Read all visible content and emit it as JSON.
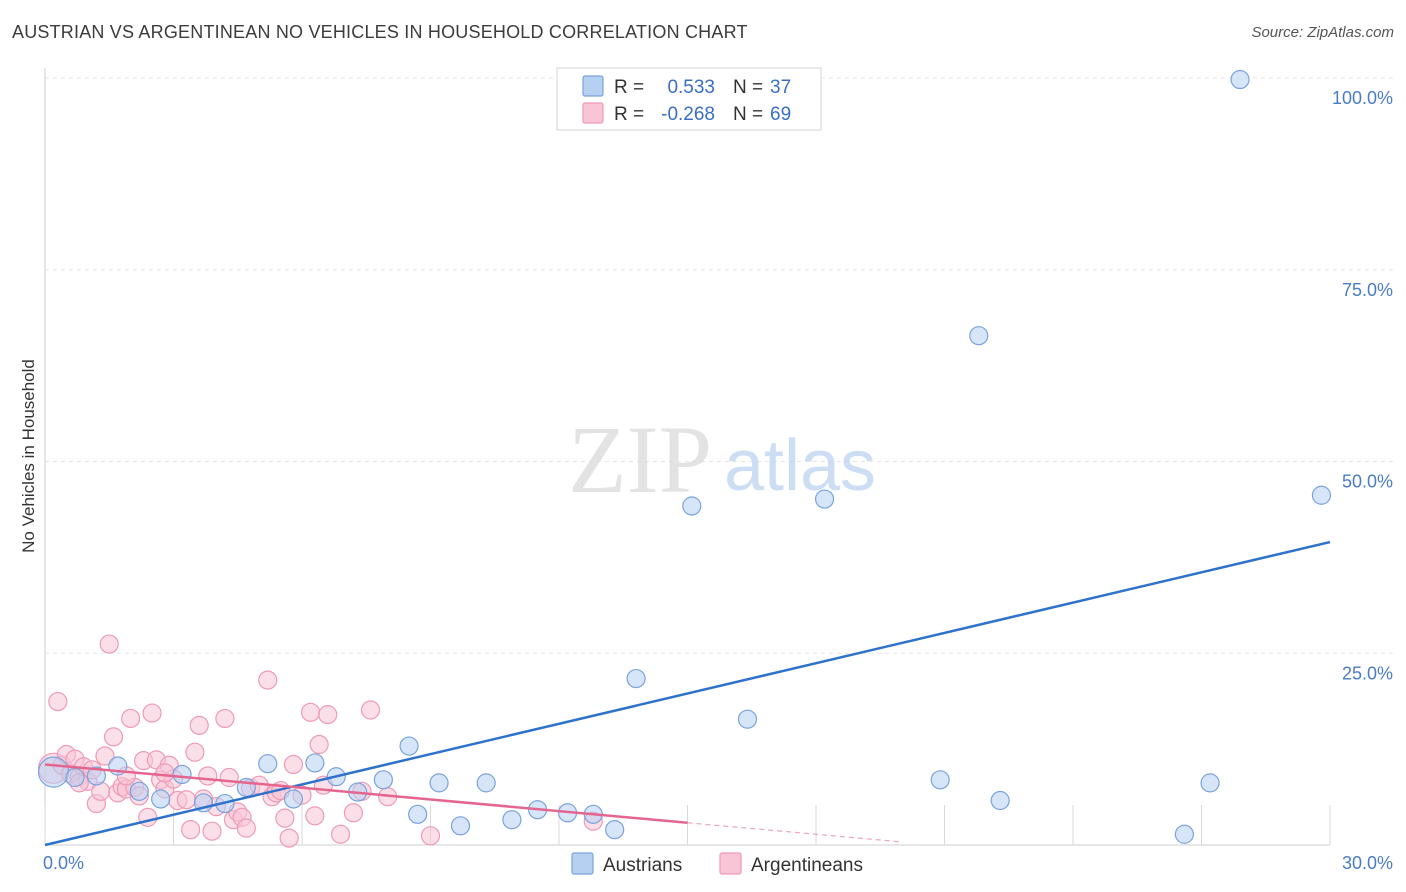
{
  "header": {
    "title": "AUSTRIAN VS ARGENTINEAN NO VEHICLES IN HOUSEHOLD CORRELATION CHART",
    "source": "Source: ZipAtlas.com"
  },
  "watermark": {
    "zip": "ZIP",
    "atlas": "atlas"
  },
  "colors": {
    "austrians_fill": "#b6d0f2",
    "austrians_stroke": "#7aa3dd",
    "austrians_line": "#2f72cc",
    "argentineans_fill": "#f8c5d6",
    "argentineans_stroke": "#ee9ab6",
    "argentineans_line": "#e4668f",
    "grid": "#e6e6e6",
    "axis_text": "#4a7cc6"
  },
  "legend": {
    "rows": [
      {
        "r_label": "R =",
        "r_value": "0.533",
        "n_label": "N =",
        "n_value": "37"
      },
      {
        "r_label": "R =",
        "r_value": "-0.268",
        "n_label": "N =",
        "n_value": "69"
      }
    ]
  },
  "chart_data": {
    "type": "scatter",
    "title": "AUSTRIAN VS ARGENTINEAN NO VEHICLES IN HOUSEHOLD CORRELATION CHART",
    "xlabel": "",
    "ylabel": "No Vehicles in Household",
    "xlim": [
      0,
      30
    ],
    "ylim": [
      0,
      100
    ],
    "x_tick_labels": [
      "0.0%",
      "30.0%"
    ],
    "y_ticks": [
      25,
      50,
      75,
      100
    ],
    "y_tick_labels": [
      "25.0%",
      "50.0%",
      "75.0%",
      "100.0%"
    ],
    "grid": true,
    "series": [
      {
        "name": "Austrians",
        "R": 0.533,
        "N": 37,
        "trend": {
          "x": [
            0,
            30
          ],
          "y": [
            0.0,
            39.5
          ]
        },
        "points": [
          {
            "x": 0.2,
            "y": 9.5,
            "big": true
          },
          {
            "x": 0.7,
            "y": 8.8
          },
          {
            "x": 1.2,
            "y": 9.0
          },
          {
            "x": 1.7,
            "y": 10.3
          },
          {
            "x": 2.2,
            "y": 7.0
          },
          {
            "x": 2.7,
            "y": 6.0
          },
          {
            "x": 3.2,
            "y": 9.2
          },
          {
            "x": 3.7,
            "y": 5.5
          },
          {
            "x": 4.2,
            "y": 5.4
          },
          {
            "x": 4.7,
            "y": 7.5
          },
          {
            "x": 5.2,
            "y": 10.6
          },
          {
            "x": 5.8,
            "y": 6.0
          },
          {
            "x": 6.3,
            "y": 10.7
          },
          {
            "x": 6.8,
            "y": 8.9
          },
          {
            "x": 7.3,
            "y": 6.9
          },
          {
            "x": 7.9,
            "y": 8.5
          },
          {
            "x": 8.5,
            "y": 12.9
          },
          {
            "x": 8.7,
            "y": 4.0
          },
          {
            "x": 9.2,
            "y": 8.1
          },
          {
            "x": 9.7,
            "y": 2.5
          },
          {
            "x": 10.3,
            "y": 8.1
          },
          {
            "x": 10.9,
            "y": 3.3
          },
          {
            "x": 11.5,
            "y": 4.6
          },
          {
            "x": 12.2,
            "y": 4.2
          },
          {
            "x": 12.8,
            "y": 4.0
          },
          {
            "x": 13.3,
            "y": 2.0
          },
          {
            "x": 13.8,
            "y": 21.7
          },
          {
            "x": 15.1,
            "y": 44.2
          },
          {
            "x": 16.4,
            "y": 16.4
          },
          {
            "x": 18.2,
            "y": 45.1
          },
          {
            "x": 20.9,
            "y": 8.5
          },
          {
            "x": 21.8,
            "y": 66.4
          },
          {
            "x": 22.3,
            "y": 5.8
          },
          {
            "x": 26.6,
            "y": 1.4
          },
          {
            "x": 27.2,
            "y": 8.1
          },
          {
            "x": 27.9,
            "y": 99.8
          },
          {
            "x": 29.8,
            "y": 45.6
          }
        ]
      },
      {
        "name": "Argentineans",
        "R": -0.268,
        "N": 69,
        "trend": {
          "x": [
            0,
            15
          ],
          "y": [
            10.5,
            2.9
          ]
        },
        "trend_dashed": {
          "x": [
            15,
            20
          ],
          "y": [
            2.9,
            0.4
          ]
        },
        "points": [
          {
            "x": 0.2,
            "y": 10.0,
            "big": true
          },
          {
            "x": 0.3,
            "y": 18.7
          },
          {
            "x": 0.4,
            "y": 10.4
          },
          {
            "x": 0.5,
            "y": 11.8
          },
          {
            "x": 0.6,
            "y": 9.3
          },
          {
            "x": 0.7,
            "y": 11.2
          },
          {
            "x": 0.8,
            "y": 8.9
          },
          {
            "x": 0.9,
            "y": 10.2
          },
          {
            "x": 1.0,
            "y": 8.3
          },
          {
            "x": 1.1,
            "y": 9.8
          },
          {
            "x": 1.2,
            "y": 5.4
          },
          {
            "x": 1.3,
            "y": 7.0
          },
          {
            "x": 1.4,
            "y": 11.6
          },
          {
            "x": 1.5,
            "y": 26.2
          },
          {
            "x": 1.6,
            "y": 14.1
          },
          {
            "x": 1.7,
            "y": 6.8
          },
          {
            "x": 1.8,
            "y": 7.6
          },
          {
            "x": 1.9,
            "y": 7.3
          },
          {
            "x": 2.0,
            "y": 16.5
          },
          {
            "x": 2.1,
            "y": 7.5
          },
          {
            "x": 2.2,
            "y": 6.4
          },
          {
            "x": 2.3,
            "y": 11.0
          },
          {
            "x": 2.4,
            "y": 3.6
          },
          {
            "x": 2.5,
            "y": 17.2
          },
          {
            "x": 2.6,
            "y": 11.1
          },
          {
            "x": 2.7,
            "y": 8.5
          },
          {
            "x": 2.8,
            "y": 7.3
          },
          {
            "x": 2.9,
            "y": 10.4
          },
          {
            "x": 3.0,
            "y": 8.6
          },
          {
            "x": 3.1,
            "y": 5.8
          },
          {
            "x": 3.3,
            "y": 5.9
          },
          {
            "x": 3.4,
            "y": 2.0
          },
          {
            "x": 3.5,
            "y": 12.1
          },
          {
            "x": 3.6,
            "y": 15.6
          },
          {
            "x": 3.8,
            "y": 9.0
          },
          {
            "x": 3.9,
            "y": 1.8
          },
          {
            "x": 4.0,
            "y": 5.0
          },
          {
            "x": 4.2,
            "y": 16.5
          },
          {
            "x": 4.3,
            "y": 8.8
          },
          {
            "x": 4.4,
            "y": 3.3
          },
          {
            "x": 4.5,
            "y": 4.3
          },
          {
            "x": 4.6,
            "y": 3.6
          },
          {
            "x": 4.7,
            "y": 2.2
          },
          {
            "x": 4.8,
            "y": 7.4
          },
          {
            "x": 5.0,
            "y": 7.8
          },
          {
            "x": 5.2,
            "y": 21.5
          },
          {
            "x": 5.3,
            "y": 6.3
          },
          {
            "x": 5.4,
            "y": 6.8
          },
          {
            "x": 5.6,
            "y": 3.5
          },
          {
            "x": 5.7,
            "y": 0.9
          },
          {
            "x": 5.8,
            "y": 10.5
          },
          {
            "x": 6.0,
            "y": 6.5
          },
          {
            "x": 6.2,
            "y": 17.3
          },
          {
            "x": 6.3,
            "y": 3.8
          },
          {
            "x": 6.4,
            "y": 13.1
          },
          {
            "x": 6.5,
            "y": 7.8
          },
          {
            "x": 6.6,
            "y": 17.0
          },
          {
            "x": 6.9,
            "y": 1.4
          },
          {
            "x": 7.2,
            "y": 4.2
          },
          {
            "x": 7.4,
            "y": 7.0
          },
          {
            "x": 7.6,
            "y": 17.6
          },
          {
            "x": 8.0,
            "y": 6.3
          },
          {
            "x": 9.0,
            "y": 1.2
          },
          {
            "x": 12.8,
            "y": 3.1
          },
          {
            "x": 1.9,
            "y": 9.0
          },
          {
            "x": 2.8,
            "y": 9.4
          },
          {
            "x": 3.7,
            "y": 6.0
          },
          {
            "x": 0.8,
            "y": 8.1
          },
          {
            "x": 5.5,
            "y": 7.1
          }
        ]
      }
    ],
    "legend": {
      "position": "top-center"
    },
    "bottom_legend": [
      "Austrians",
      "Argentineans"
    ]
  }
}
